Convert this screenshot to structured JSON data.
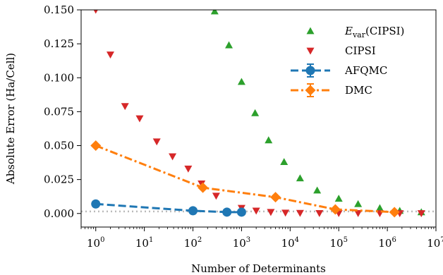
{
  "chart_data": {
    "type": "scatter",
    "xlabel": "Number of Determinants",
    "ylabel": "Absolute Error (Ha/Cell)",
    "xscale": "log",
    "xlim": [
      0.5,
      10000000
    ],
    "ylim": [
      -0.01,
      0.15
    ],
    "x_ticks": [
      {
        "value": 1,
        "base": "10",
        "exp": "0"
      },
      {
        "value": 10,
        "base": "10",
        "exp": "1"
      },
      {
        "value": 100,
        "base": "10",
        "exp": "2"
      },
      {
        "value": 1000,
        "base": "10",
        "exp": "3"
      },
      {
        "value": 10000,
        "base": "10",
        "exp": "4"
      },
      {
        "value": 100000,
        "base": "10",
        "exp": "5"
      },
      {
        "value": 1000000,
        "base": "10",
        "exp": "6"
      },
      {
        "value": 10000000,
        "base": "10",
        "exp": "7"
      }
    ],
    "y_ticks": [
      {
        "value": 0.0,
        "label": "0.000"
      },
      {
        "value": 0.025,
        "label": "0.025"
      },
      {
        "value": 0.05,
        "label": "0.050"
      },
      {
        "value": 0.075,
        "label": "0.075"
      },
      {
        "value": 0.1,
        "label": "0.100"
      },
      {
        "value": 0.125,
        "label": "0.125"
      },
      {
        "value": 0.15,
        "label": "0.150"
      }
    ],
    "reference_line": {
      "y": 0.0015,
      "color": "#bbbbbb",
      "style": "dotted"
    },
    "legend": {
      "position": "upper-right",
      "entries": [
        {
          "main": "E",
          "sub": "var",
          "rest": "(CIPSI)",
          "series": "evar"
        },
        {
          "main": "CIPSI",
          "series": "cipsi"
        },
        {
          "main": "AFQMC",
          "series": "afqmc"
        },
        {
          "main": "DMC",
          "series": "dmc"
        }
      ]
    },
    "series": [
      {
        "key": "evar",
        "marker": "triangle-up",
        "color": "#2ca02c",
        "line": "none",
        "x": [
          280,
          550,
          1000,
          1900,
          3600,
          7500,
          16000,
          36000,
          100000,
          250000,
          700000,
          1800000,
          5000000
        ],
        "y": [
          0.149,
          0.124,
          0.097,
          0.074,
          0.054,
          0.038,
          0.026,
          0.017,
          0.011,
          0.007,
          0.004,
          0.002,
          0.001
        ]
      },
      {
        "key": "cipsi",
        "marker": "triangle-down",
        "color": "#d62728",
        "line": "none",
        "x": [
          1,
          2,
          4,
          8,
          18,
          38,
          80,
          150,
          300,
          1000,
          2000,
          4000,
          8000,
          16000,
          40000,
          100000,
          250000,
          700000,
          1800000,
          5000000
        ],
        "y": [
          0.15,
          0.117,
          0.079,
          0.07,
          0.053,
          0.042,
          0.033,
          0.022,
          0.013,
          0.004,
          0.002,
          0.001,
          0.0005,
          0.0003,
          0.0002,
          0.0002,
          0.0002,
          0.0001,
          0.0001,
          0.0001
        ]
      },
      {
        "key": "afqmc",
        "marker": "circle",
        "color": "#1f77b4",
        "line": "dashed",
        "x": [
          1,
          100,
          500,
          1000
        ],
        "y": [
          0.007,
          0.002,
          0.001,
          0.001
        ]
      },
      {
        "key": "dmc",
        "marker": "diamond",
        "color": "#ff7f0e",
        "line": "dashdot",
        "x": [
          1,
          160,
          5000,
          85000,
          1400000
        ],
        "y": [
          0.05,
          0.019,
          0.012,
          0.003,
          0.001
        ]
      }
    ]
  }
}
